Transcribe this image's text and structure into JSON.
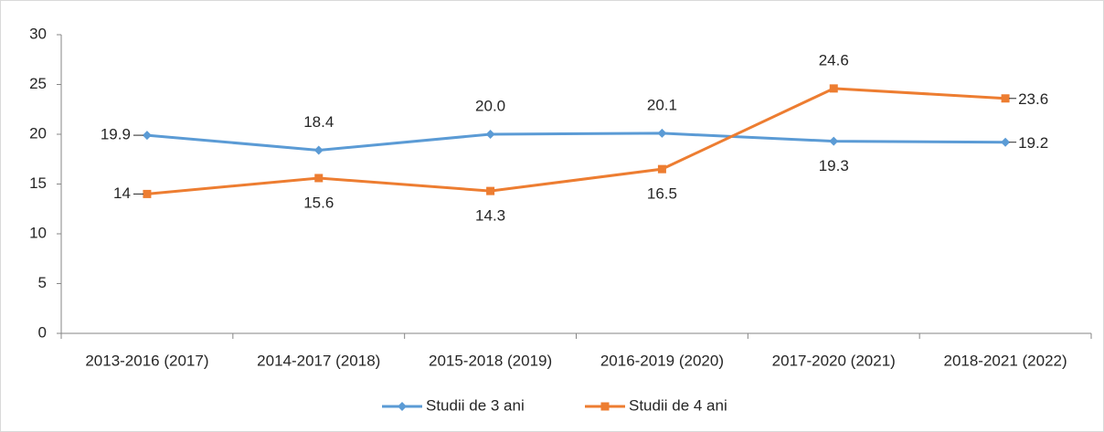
{
  "chart_data": {
    "type": "line",
    "categories": [
      "2013-2016 (2017)",
      "2014-2017 (2018)",
      "2015-2018 (2019)",
      "2016-2019 (2020)",
      "2017-2020 (2021)",
      "2018-2021 (2022)"
    ],
    "series": [
      {
        "name": "Studii de 3 ani",
        "color": "#5b9bd5",
        "marker": "diamond",
        "values": [
          19.9,
          18.4,
          20.0,
          20.1,
          19.3,
          19.2
        ],
        "value_labels": [
          "19.9",
          "18.4",
          "20.0",
          "20.1",
          "19.3",
          "19.2"
        ]
      },
      {
        "name": "Studii de 4 ani",
        "color": "#ed7d31",
        "marker": "square",
        "values": [
          14,
          15.6,
          14.3,
          16.5,
          24.6,
          23.6
        ]
      }
    ],
    "ylim": [
      0,
      30
    ],
    "yticks": [
      0,
      5,
      10,
      15,
      20,
      25,
      30
    ],
    "grid": false,
    "legend": "bottom"
  }
}
